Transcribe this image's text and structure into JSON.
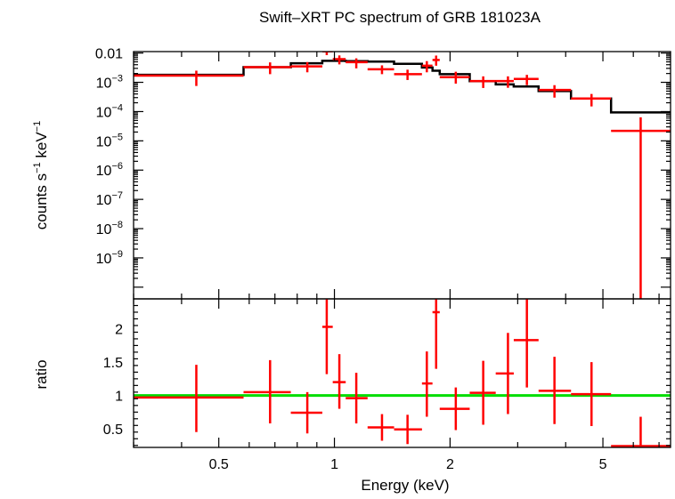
{
  "chart_data": [
    {
      "type": "scatter",
      "title": "Swift–XRT PC spectrum of GRB 181023A",
      "ylabel": {
        "base": "counts s",
        "exp1": "−1",
        "mid": " keV",
        "exp2": "−1"
      },
      "xlim": [
        0.3,
        7.5
      ],
      "ylim_log10": [
        -10.4,
        -1.95
      ],
      "x_log": true,
      "y_log": true,
      "yticks_major": [
        {
          "exp": -9,
          "label": "10",
          "sup": "−9"
        },
        {
          "exp": -8,
          "label": "10",
          "sup": "−8"
        },
        {
          "exp": -7,
          "label": "10",
          "sup": "−7"
        },
        {
          "exp": -6,
          "label": "10",
          "sup": "−6"
        },
        {
          "exp": -5,
          "label": "10",
          "sup": "−5"
        },
        {
          "exp": -4,
          "label": "10",
          "sup": "−4"
        },
        {
          "exp": -3,
          "label": "10",
          "sup": "−3"
        },
        {
          "exp": -2,
          "label": "0.01",
          "sup": ""
        }
      ],
      "series": [
        {
          "kind": "data",
          "color": "#ff0000",
          "points": [
            {
              "x": 0.437,
              "xlo": 0.3,
              "xhi": 0.58,
              "y": 0.0017,
              "ylo": 0.00075,
              "yhi": 0.0025
            },
            {
              "x": 0.68,
              "xlo": 0.58,
              "xhi": 0.77,
              "y": 0.0033,
              "ylo": 0.0019,
              "yhi": 0.0048
            },
            {
              "x": 0.85,
              "xlo": 0.77,
              "xhi": 0.93,
              "y": 0.0035,
              "ylo": 0.0022,
              "yhi": 0.0049
            },
            {
              "x": 0.955,
              "xlo": 0.93,
              "xhi": 0.99,
              "y": 0.0115,
              "ylo": 0.0085,
              "yhi": 0.0145
            },
            {
              "x": 1.03,
              "xlo": 0.99,
              "xhi": 1.07,
              "y": 0.0062,
              "ylo": 0.0041,
              "yhi": 0.0083
            },
            {
              "x": 1.14,
              "xlo": 1.07,
              "xhi": 1.22,
              "y": 0.0049,
              "ylo": 0.003,
              "yhi": 0.0066
            },
            {
              "x": 1.33,
              "xlo": 1.22,
              "xhi": 1.43,
              "y": 0.0028,
              "ylo": 0.0019,
              "yhi": 0.0038
            },
            {
              "x": 1.55,
              "xlo": 1.43,
              "xhi": 1.69,
              "y": 0.0019,
              "ylo": 0.0012,
              "yhi": 0.0027
            },
            {
              "x": 1.74,
              "xlo": 1.69,
              "xhi": 1.8,
              "y": 0.0037,
              "ylo": 0.0022,
              "yhi": 0.0053
            },
            {
              "x": 1.84,
              "xlo": 1.8,
              "xhi": 1.88,
              "y": 0.0058,
              "ylo": 0.0037,
              "yhi": 0.0082
            },
            {
              "x": 2.07,
              "xlo": 1.88,
              "xhi": 2.25,
              "y": 0.0015,
              "ylo": 0.0009,
              "yhi": 0.0023
            },
            {
              "x": 2.44,
              "xlo": 2.25,
              "xhi": 2.63,
              "y": 0.0011,
              "ylo": 0.00064,
              "yhi": 0.0016
            },
            {
              "x": 2.83,
              "xlo": 2.63,
              "xhi": 2.93,
              "y": 0.0011,
              "ylo": 0.00065,
              "yhi": 0.0016
            },
            {
              "x": 3.17,
              "xlo": 2.93,
              "xhi": 3.4,
              "y": 0.0013,
              "ylo": 0.0008,
              "yhi": 0.0018
            },
            {
              "x": 3.74,
              "xlo": 3.4,
              "xhi": 4.13,
              "y": 0.00055,
              "ylo": 0.0003,
              "yhi": 0.0008
            },
            {
              "x": 4.67,
              "xlo": 4.13,
              "xhi": 5.25,
              "y": 0.00028,
              "ylo": 0.00015,
              "yhi": 0.0004
            },
            {
              "x": 6.27,
              "xlo": 5.25,
              "xhi": 7.5,
              "y": 2.2e-05,
              "ylo": 1e-12,
              "yhi": 6.4e-05
            }
          ]
        },
        {
          "kind": "model",
          "color": "#000000",
          "steps": [
            {
              "x0": 0.3,
              "x1": 0.58,
              "y": 0.0018
            },
            {
              "x0": 0.58,
              "x1": 0.77,
              "y": 0.0033
            },
            {
              "x0": 0.77,
              "x1": 0.93,
              "y": 0.0045
            },
            {
              "x0": 0.93,
              "x1": 0.99,
              "y": 0.0054
            },
            {
              "x0": 0.99,
              "x1": 1.07,
              "y": 0.0054
            },
            {
              "x0": 1.07,
              "x1": 1.22,
              "y": 0.0053
            },
            {
              "x0": 1.22,
              "x1": 1.43,
              "y": 0.0051
            },
            {
              "x0": 1.43,
              "x1": 1.69,
              "y": 0.0043
            },
            {
              "x0": 1.69,
              "x1": 1.8,
              "y": 0.0032
            },
            {
              "x0": 1.8,
              "x1": 1.88,
              "y": 0.0025
            },
            {
              "x0": 1.88,
              "x1": 2.25,
              "y": 0.0019
            },
            {
              "x0": 2.25,
              "x1": 2.63,
              "y": 0.0011
            },
            {
              "x0": 2.63,
              "x1": 2.93,
              "y": 0.00085
            },
            {
              "x0": 2.93,
              "x1": 3.4,
              "y": 0.00072
            },
            {
              "x0": 3.4,
              "x1": 4.13,
              "y": 0.0005
            },
            {
              "x0": 4.13,
              "x1": 5.25,
              "y": 0.00028
            },
            {
              "x0": 5.25,
              "x1": 7.5,
              "y": 9.35e-05
            }
          ]
        }
      ]
    },
    {
      "type": "scatter",
      "xlabel": "Energy (keV)",
      "ylabel": "ratio",
      "xlim": [
        0.3,
        7.5
      ],
      "ylim": [
        0.22,
        2.45
      ],
      "x_log": true,
      "y_log": false,
      "xticks_major": [
        {
          "value": 0.5,
          "label": "0.5"
        },
        {
          "value": 1,
          "label": "1"
        },
        {
          "value": 2,
          "label": "2"
        },
        {
          "value": 5,
          "label": "5"
        }
      ],
      "yticks_major": [
        {
          "value": 0.5,
          "label": "0.5"
        },
        {
          "value": 1,
          "label": "1"
        },
        {
          "value": 1.5,
          "label": "1.5"
        },
        {
          "value": 2,
          "label": "2"
        }
      ],
      "reference_line": {
        "y": 1,
        "color": "#00dd00"
      },
      "series": [
        {
          "kind": "ratio",
          "color": "#ff0000",
          "points": [
            {
              "x": 0.437,
              "xlo": 0.3,
              "xhi": 0.58,
              "y": 0.97,
              "ylo": 0.45,
              "yhi": 1.46
            },
            {
              "x": 0.68,
              "xlo": 0.58,
              "xhi": 0.77,
              "y": 1.05,
              "ylo": 0.58,
              "yhi": 1.53
            },
            {
              "x": 0.85,
              "xlo": 0.77,
              "xhi": 0.93,
              "y": 0.74,
              "ylo": 0.43,
              "yhi": 1.05
            },
            {
              "x": 0.955,
              "xlo": 0.93,
              "xhi": 0.99,
              "y": 2.03,
              "ylo": 1.32,
              "yhi": 2.72
            },
            {
              "x": 1.03,
              "xlo": 0.99,
              "xhi": 1.07,
              "y": 1.2,
              "ylo": 0.8,
              "yhi": 1.62
            },
            {
              "x": 1.14,
              "xlo": 1.07,
              "xhi": 1.22,
              "y": 0.96,
              "ylo": 0.58,
              "yhi": 1.34
            },
            {
              "x": 1.33,
              "xlo": 1.22,
              "xhi": 1.43,
              "y": 0.52,
              "ylo": 0.32,
              "yhi": 0.72
            },
            {
              "x": 1.55,
              "xlo": 1.43,
              "xhi": 1.69,
              "y": 0.49,
              "ylo": 0.27,
              "yhi": 0.71
            },
            {
              "x": 1.74,
              "xlo": 1.69,
              "xhi": 1.8,
              "y": 1.18,
              "ylo": 0.68,
              "yhi": 1.66
            },
            {
              "x": 1.84,
              "xlo": 1.8,
              "xhi": 1.88,
              "y": 2.25,
              "ylo": 1.4,
              "yhi": 3.0
            },
            {
              "x": 2.07,
              "xlo": 1.88,
              "xhi": 2.25,
              "y": 0.8,
              "ylo": 0.48,
              "yhi": 1.12
            },
            {
              "x": 2.44,
              "xlo": 2.25,
              "xhi": 2.63,
              "y": 1.04,
              "ylo": 0.56,
              "yhi": 1.52
            },
            {
              "x": 2.83,
              "xlo": 2.63,
              "xhi": 2.93,
              "y": 1.33,
              "ylo": 0.72,
              "yhi": 1.94
            },
            {
              "x": 3.17,
              "xlo": 2.93,
              "xhi": 3.4,
              "y": 1.83,
              "ylo": 1.12,
              "yhi": 2.54
            },
            {
              "x": 3.74,
              "xlo": 3.4,
              "xhi": 4.13,
              "y": 1.07,
              "ylo": 0.57,
              "yhi": 1.58
            },
            {
              "x": 4.67,
              "xlo": 4.13,
              "xhi": 5.25,
              "y": 1.02,
              "ylo": 0.54,
              "yhi": 1.5
            },
            {
              "x": 6.27,
              "xlo": 5.25,
              "xhi": 7.5,
              "y": 0.24,
              "ylo": 0.0,
              "yhi": 0.68
            }
          ]
        }
      ]
    }
  ]
}
